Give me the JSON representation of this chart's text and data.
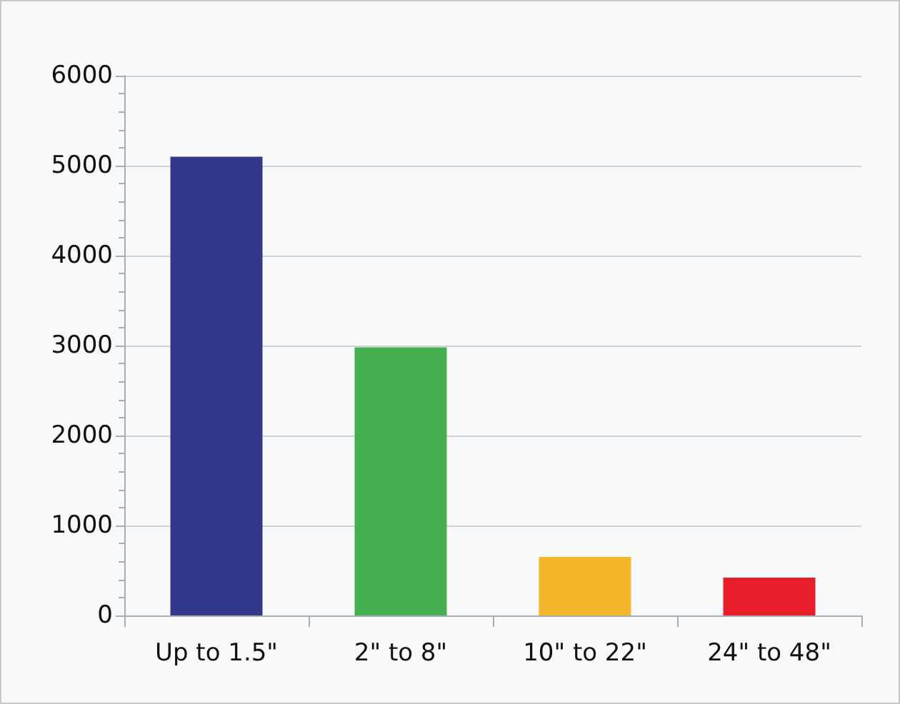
{
  "chart_data": {
    "type": "bar",
    "categories": [
      "Up to 1.5\"",
      "2\" to 8\"",
      "10\" to 22\"",
      "24\" to 48\""
    ],
    "values": [
      5100,
      2980,
      650,
      420
    ],
    "colors": [
      "#32398a",
      "#45b04f",
      "#f4b72b",
      "#e81e2a"
    ],
    "ylim": [
      0,
      6000
    ],
    "yticks": [
      0,
      1000,
      2000,
      3000,
      4000,
      5000,
      6000
    ],
    "grid": "y"
  }
}
